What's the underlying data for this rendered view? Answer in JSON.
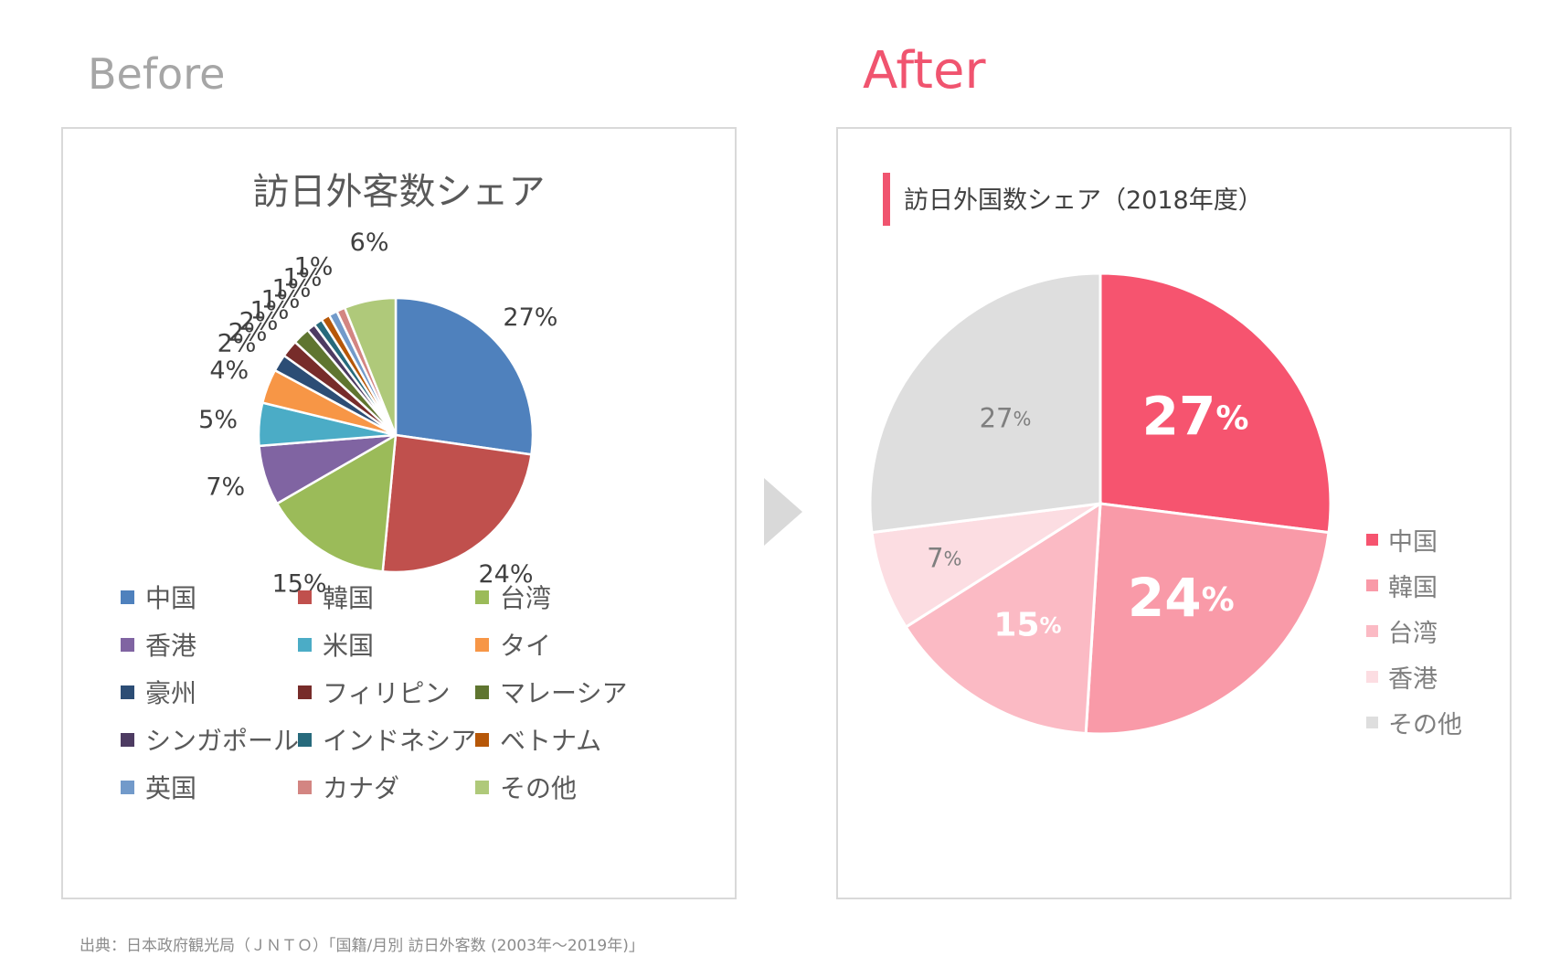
{
  "headings": {
    "before": "Before",
    "after": "After"
  },
  "source": "出典：日本政府観光局（ＪＮＴＯ）「国籍/月別 訪日外客数 (2003年～2019年)」",
  "chart_data": [
    {
      "type": "pie",
      "title": "訪日外客数シェア",
      "legend_position": "bottom",
      "categories": [
        "中国",
        "韓国",
        "台湾",
        "香港",
        "米国",
        "タイ",
        "豪州",
        "フィリピン",
        "マレーシア",
        "シンガポール",
        "インドネシア",
        "ベトナム",
        "英国",
        "カナダ",
        "その他"
      ],
      "values": [
        27,
        24,
        15,
        7,
        5,
        4,
        2,
        2,
        2,
        1,
        1,
        1,
        1,
        1,
        6
      ],
      "value_labels": [
        "27%",
        "24%",
        "15%",
        "7%",
        "5%",
        "4%",
        "2%",
        "2%",
        "2%",
        "1%",
        "1%",
        "1%",
        "1%",
        "1%",
        "6%"
      ],
      "colors": [
        "#4f81bd",
        "#c0504d",
        "#9bbb59",
        "#8064a2",
        "#4bacc6",
        "#f79646",
        "#2c4d75",
        "#772c2a",
        "#5f7530",
        "#4d3b62",
        "#276a7c",
        "#b65708",
        "#729aca",
        "#d38582",
        "#afc97a"
      ]
    },
    {
      "type": "pie",
      "title": "訪日外国数シェア（2018年度）",
      "legend_position": "right",
      "categories": [
        "中国",
        "韓国",
        "台湾",
        "香港",
        "その他"
      ],
      "values": [
        27,
        24,
        15,
        7,
        27
      ],
      "value_labels": [
        {
          "num": "27",
          "pct": "%"
        },
        {
          "num": "24",
          "pct": "%"
        },
        {
          "num": "15",
          "pct": "%"
        },
        {
          "num": "7",
          "pct": "%"
        },
        {
          "num": "27",
          "pct": "%"
        }
      ],
      "colors": [
        "#f6546f",
        "#f99aa8",
        "#fbbac4",
        "#fcdde2",
        "#dedede"
      ]
    }
  ]
}
